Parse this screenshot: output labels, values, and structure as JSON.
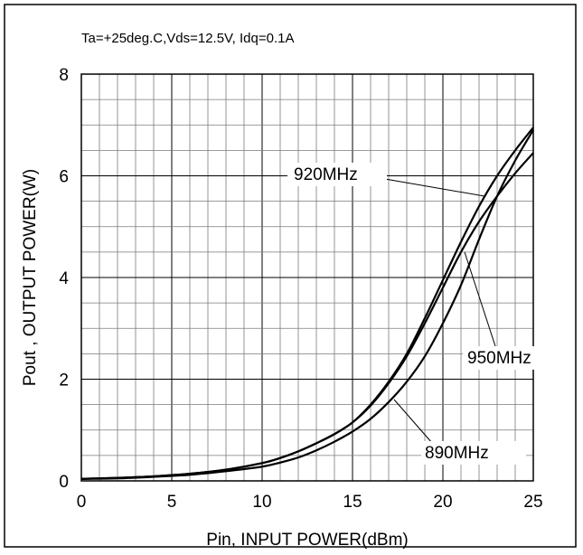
{
  "chart_data": {
    "type": "line",
    "title": "Ta=+25deg.C,Vds=12.5V, Idq=0.1A",
    "xlabel": "Pin, INPUT POWER(dBm)",
    "ylabel": "Pout , OUTPUT POWER(W)",
    "xlim": [
      0,
      25
    ],
    "ylim": [
      0,
      8
    ],
    "xticks": [
      0,
      5,
      10,
      15,
      20,
      25
    ],
    "yticks": [
      0,
      2,
      4,
      6,
      8
    ],
    "grid": true,
    "series": [
      {
        "name": "920MHz",
        "x": [
          0,
          2,
          4,
          6,
          8,
          10,
          11,
          12,
          13,
          14,
          15,
          16,
          17,
          18,
          19,
          20,
          21,
          22,
          23,
          24,
          25
        ],
        "y": [
          0.04,
          0.06,
          0.09,
          0.14,
          0.22,
          0.35,
          0.45,
          0.58,
          0.74,
          0.92,
          1.15,
          1.5,
          1.95,
          2.5,
          3.2,
          3.95,
          4.7,
          5.4,
          6.0,
          6.5,
          6.95
        ]
      },
      {
        "name": "950MHz",
        "x": [
          0,
          2,
          4,
          6,
          8,
          10,
          11,
          12,
          13,
          14,
          15,
          16,
          17,
          18,
          19,
          20,
          21,
          22,
          23,
          24,
          25
        ],
        "y": [
          0.04,
          0.06,
          0.09,
          0.14,
          0.22,
          0.35,
          0.45,
          0.58,
          0.74,
          0.92,
          1.15,
          1.48,
          1.92,
          2.45,
          3.1,
          3.8,
          4.5,
          5.1,
          5.6,
          6.05,
          6.45
        ]
      },
      {
        "name": "890MHz",
        "x": [
          0,
          2,
          4,
          6,
          8,
          10,
          11,
          12,
          13,
          14,
          15,
          16,
          17,
          18,
          19,
          20,
          21,
          22,
          23,
          24,
          25
        ],
        "y": [
          0.04,
          0.05,
          0.08,
          0.12,
          0.19,
          0.28,
          0.36,
          0.46,
          0.6,
          0.77,
          0.97,
          1.22,
          1.55,
          1.95,
          2.45,
          3.1,
          3.85,
          4.75,
          5.6,
          6.3,
          6.9
        ]
      }
    ],
    "annotations": [
      {
        "label": "920MHz",
        "series": "920MHz",
        "x": 22.3,
        "y": 5.6
      },
      {
        "label": "950MHz",
        "series": "950MHz",
        "x": 21.2,
        "y": 4.5
      },
      {
        "label": "890MHz",
        "series": "890MHz",
        "x": 17.3,
        "y": 1.6
      }
    ]
  }
}
